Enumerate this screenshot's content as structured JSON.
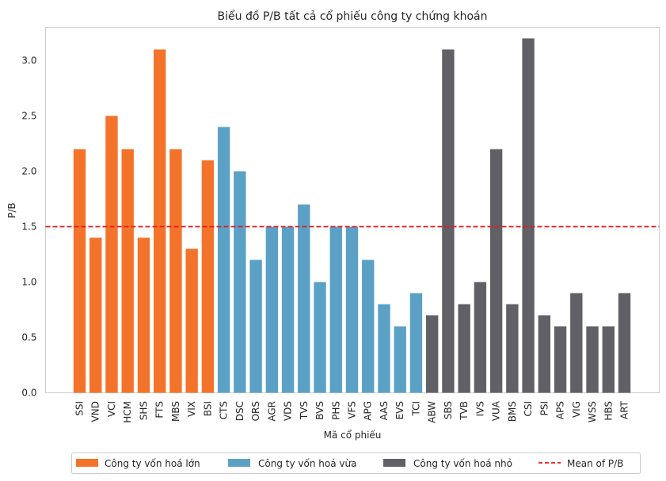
{
  "chart_data": {
    "type": "bar",
    "title": "Biểu đồ P/B tất cả cổ phiếu công ty chứng khoán",
    "xlabel": "Mã cổ phiếu",
    "ylabel": "P/B",
    "ylim": [
      0,
      3.3
    ],
    "yticks": [
      "0.0",
      "0.5",
      "1.0",
      "1.5",
      "2.0",
      "2.5",
      "3.0"
    ],
    "grid": false,
    "legend_position": "bottom-center",
    "mean_line": {
      "name": "Mean of P/B",
      "value": 1.5,
      "color": "#e41a1c",
      "style": "dashed"
    },
    "categories": [
      "SSI",
      "VND",
      "VCI",
      "HCM",
      "SHS",
      "FTS",
      "MBS",
      "VIX",
      "BSI",
      "CTS",
      "DSC",
      "ORS",
      "AGR",
      "VDS",
      "TVS",
      "BVS",
      "PHS",
      "VFS",
      "APG",
      "AAS",
      "EVS",
      "TCI",
      "ABW",
      "SBS",
      "TVB",
      "IVS",
      "VUA",
      "BMS",
      "CSI",
      "PSI",
      "APS",
      "VIG",
      "WSS",
      "HBS",
      "ART"
    ],
    "values": [
      2.2,
      1.4,
      2.5,
      2.2,
      1.4,
      3.1,
      2.2,
      1.3,
      2.1,
      2.4,
      2.0,
      1.2,
      1.5,
      1.5,
      1.7,
      1.0,
      1.5,
      1.5,
      1.2,
      0.8,
      0.6,
      0.9,
      0.7,
      3.1,
      0.8,
      1.0,
      2.2,
      0.8,
      3.2,
      0.7,
      0.6,
      0.9,
      0.6,
      0.6,
      0.9
    ],
    "groups": [
      0,
      0,
      0,
      0,
      0,
      0,
      0,
      0,
      0,
      1,
      1,
      1,
      1,
      1,
      1,
      1,
      1,
      1,
      1,
      1,
      1,
      1,
      2,
      2,
      2,
      2,
      2,
      2,
      2,
      2,
      2,
      2,
      2,
      2,
      2
    ],
    "series": [
      {
        "name": "Công ty vốn hoá lớn",
        "color": "#f4732a"
      },
      {
        "name": "Công ty vốn hoá vừa",
        "color": "#5ba1c6"
      },
      {
        "name": "Công ty vốn hoá nhỏ",
        "color": "#606066"
      }
    ]
  }
}
